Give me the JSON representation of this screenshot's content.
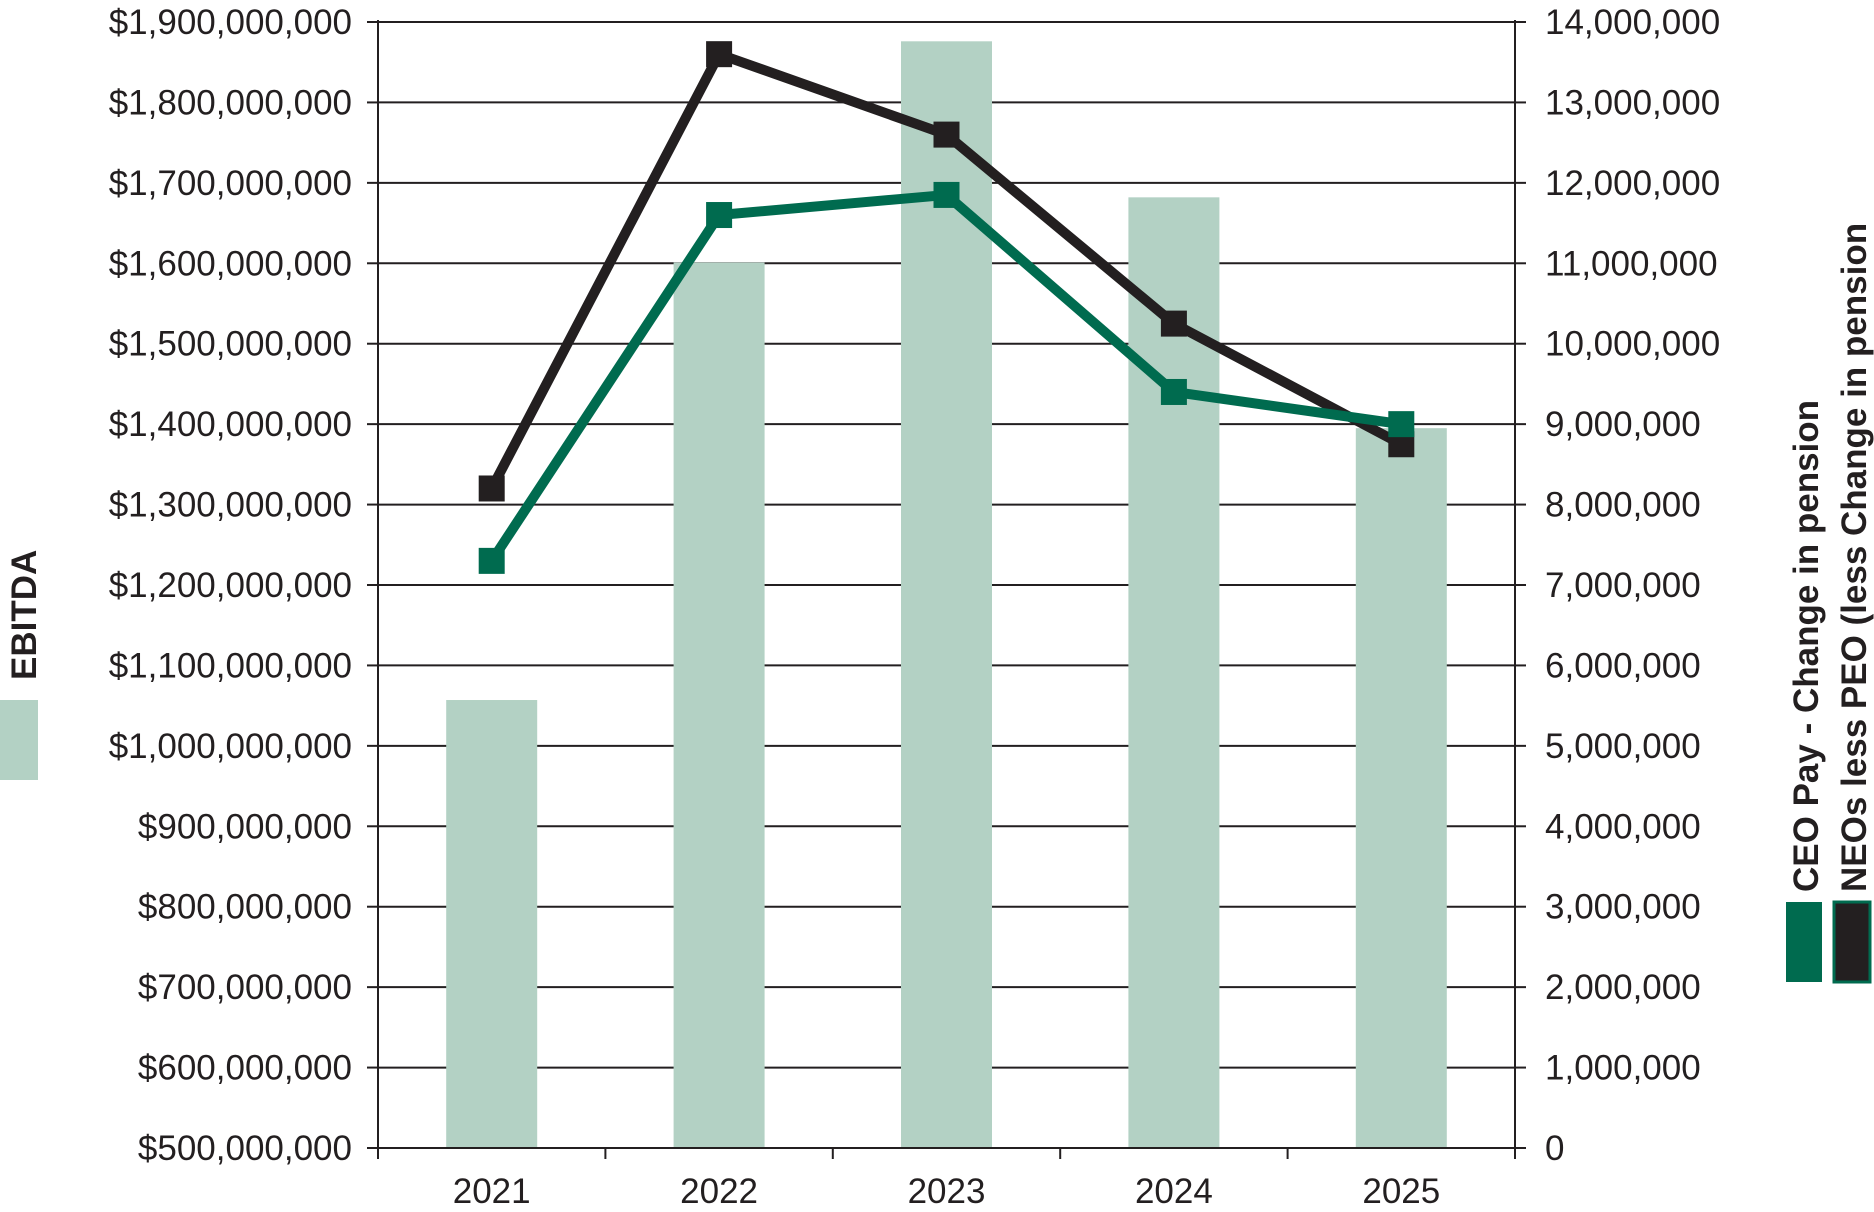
{
  "chart_data": {
    "type": "bar",
    "categories": [
      "2021",
      "2022",
      "2023",
      "2024",
      "2025"
    ],
    "bar_series": {
      "name": "EBITDA",
      "axis": "left",
      "values": [
        1057000000,
        1601000000,
        1876000000,
        1682000000,
        1395000000
      ],
      "color": "#b3d1c4"
    },
    "line_series": [
      {
        "name": "CEO Pay - Change in pension",
        "axis": "right",
        "values": [
          7300000,
          11600000,
          11850000,
          9400000,
          9000000
        ],
        "color": "#006b4f"
      },
      {
        "name": "NEOs less PEO (less Change in pension",
        "axis": "right",
        "values": [
          8200000,
          13600000,
          12600000,
          10250000,
          8750000
        ],
        "color": "#231f20"
      }
    ],
    "left_axis": {
      "ylim": [
        500000000,
        1900000000
      ],
      "step": 100000000,
      "tick_labels": [
        "$500,000,000",
        "$600,000,000",
        "$700,000,000",
        "$800,000,000",
        "$900,000,000",
        "$1,000,000,000",
        "$1,100,000,000",
        "$1,200,000,000",
        "$1,300,000,000",
        "$1,400,000,000",
        "$1,500,000,000",
        "$1,600,000,000",
        "$1,700,000,000",
        "$1,800,000,000",
        "$1,900,000,000"
      ]
    },
    "right_axis": {
      "ylim": [
        0,
        14000000
      ],
      "step": 1000000,
      "tick_labels": [
        "0",
        "1,000,000",
        "2,000,000",
        "3,000,000",
        "4,000,000",
        "5,000,000",
        "6,000,000",
        "7,000,000",
        "8,000,000",
        "9,000,000",
        "10,000,000",
        "11,000,000",
        "12,000,000",
        "13,000,000",
        "14,000,000"
      ]
    },
    "grid": true,
    "legend_placement": "left and right, rotated vertical"
  }
}
